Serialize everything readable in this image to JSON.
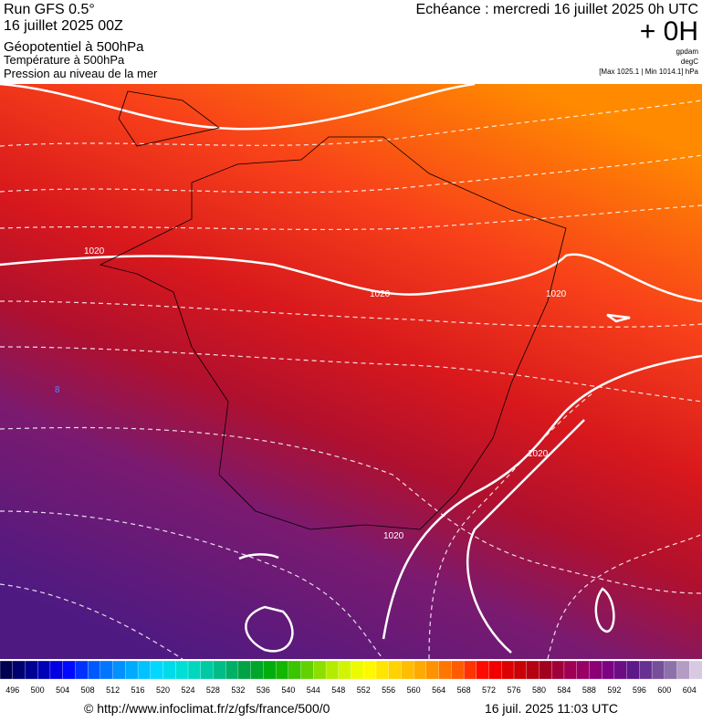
{
  "header": {
    "run": "Run GFS 0.5°",
    "date": "16 juillet 2025 00Z",
    "field1": "Géopotentiel à 500hPa",
    "field2": "Température à 500hPa",
    "field3": "Pression au niveau de la mer",
    "echeance": "Echéance : mercredi 16 juillet 2025 0h UTC",
    "offset": "+ 0H",
    "unit1": "gpdam",
    "unit2": "degC",
    "range": "[Max 1025.1 | Min 1014.1] hPa"
  },
  "map": {
    "contour_labels": [
      "1020",
      "1020",
      "1020",
      "1020",
      "1020",
      "8"
    ]
  },
  "colorbar": {
    "labels": [
      496,
      500,
      504,
      508,
      512,
      516,
      520,
      524,
      528,
      532,
      536,
      540,
      544,
      548,
      552,
      556,
      560,
      564,
      568,
      572,
      576,
      580,
      584,
      588,
      592,
      596,
      600,
      604
    ],
    "colors": [
      "#000050",
      "#0000a0",
      "#0000ff",
      "#0060ff",
      "#00a0ff",
      "#00d8ff",
      "#00e0d0",
      "#00c090",
      "#00a040",
      "#00b000",
      "#60d000",
      "#c0f000",
      "#ffff00",
      "#ffd000",
      "#ffa000",
      "#ff6000",
      "#ff0000",
      "#d00000",
      "#a00020",
      "#a00060",
      "#800080",
      "#5a1a8a",
      "#8060a0",
      "#d8c8e0"
    ]
  },
  "footer": {
    "url": "© http://www.infoclimat.fr/z/gfs/france/500/0",
    "time": "16 juil. 2025 11:03 UTC"
  }
}
